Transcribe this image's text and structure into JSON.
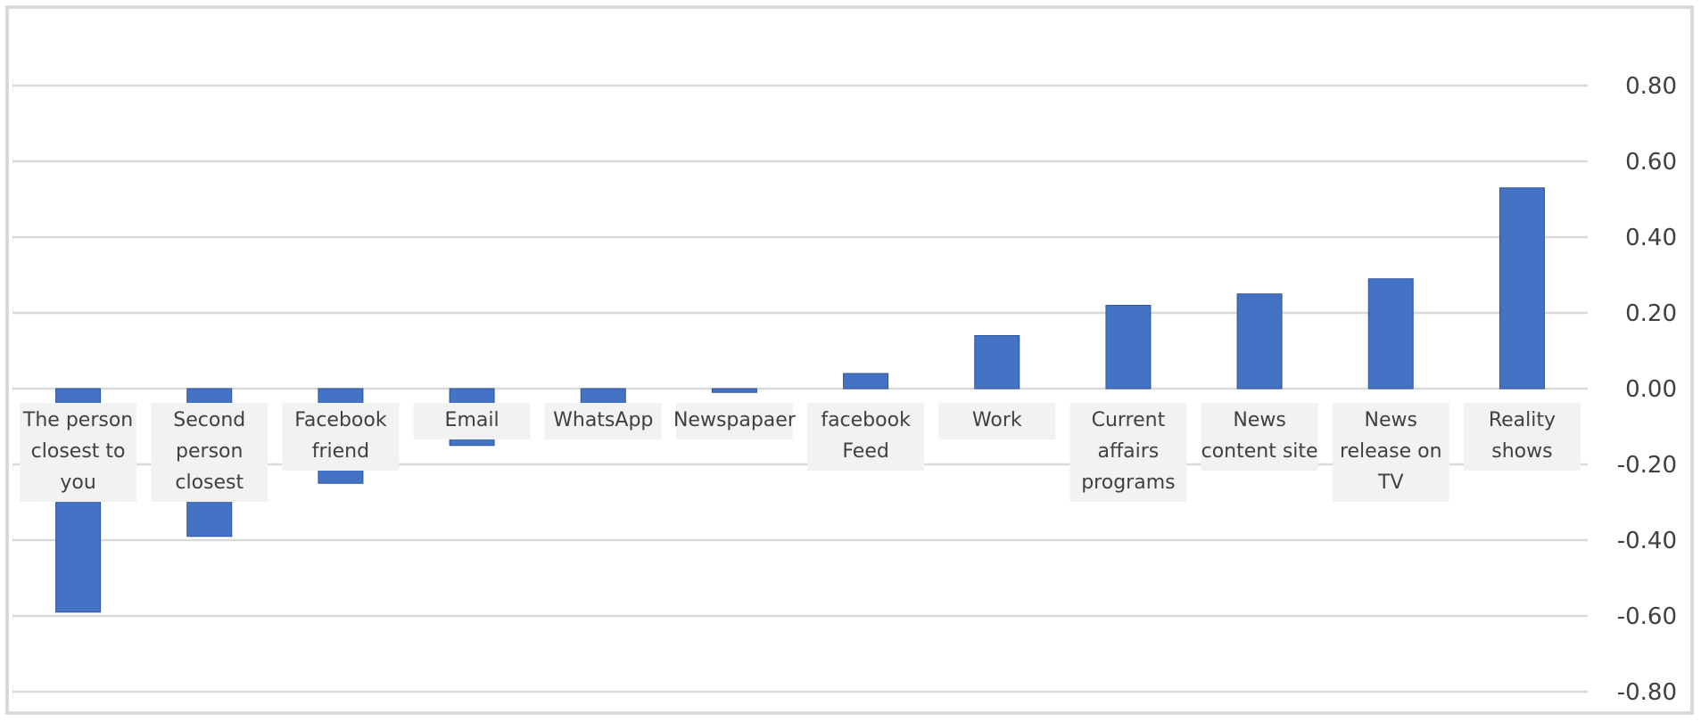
{
  "chart_data": {
    "type": "bar",
    "title": "",
    "xlabel": "",
    "ylabel": "",
    "categories": [
      "The person closest to you",
      "Second person closest",
      "Facebook friend",
      "Email",
      "WhatsApp",
      "Newspapaer",
      "facebook Feed",
      "Work",
      "Current affairs programs",
      "News content site",
      "News release on TV",
      "Reality shows"
    ],
    "category_lines": [
      [
        "The person",
        "closest to",
        "you"
      ],
      [
        "Second",
        "person",
        "closest"
      ],
      [
        "Facebook",
        "friend"
      ],
      [
        "Email"
      ],
      [
        "WhatsApp"
      ],
      [
        "Newspapaer"
      ],
      [
        "facebook",
        "Feed"
      ],
      [
        "Work"
      ],
      [
        "Current",
        "affairs",
        "programs"
      ],
      [
        "News",
        "content site"
      ],
      [
        "News",
        "release on",
        "TV"
      ],
      [
        "Reality",
        "shows"
      ]
    ],
    "series": [
      {
        "values": [
          -0.59,
          -0.39,
          -0.25,
          -0.15,
          -0.13,
          -0.01,
          0.04,
          0.14,
          0.22,
          0.25,
          0.29,
          0.53
        ]
      }
    ],
    "ylim": [
      -0.8,
      0.8
    ],
    "yticks": [
      "0.80",
      "0.60",
      "0.40",
      "0.20",
      "0.00",
      "-0.20",
      "-0.40",
      "-0.60",
      "-0.80"
    ],
    "ytick_values": [
      0.8,
      0.6,
      0.4,
      0.2,
      0.0,
      -0.2,
      -0.4,
      -0.6,
      -0.8
    ],
    "grid": true,
    "axis_position": "right",
    "bar_color": "#4472c4",
    "grid_color": "#d9d9d9",
    "label_background": "#f2f2f2"
  }
}
